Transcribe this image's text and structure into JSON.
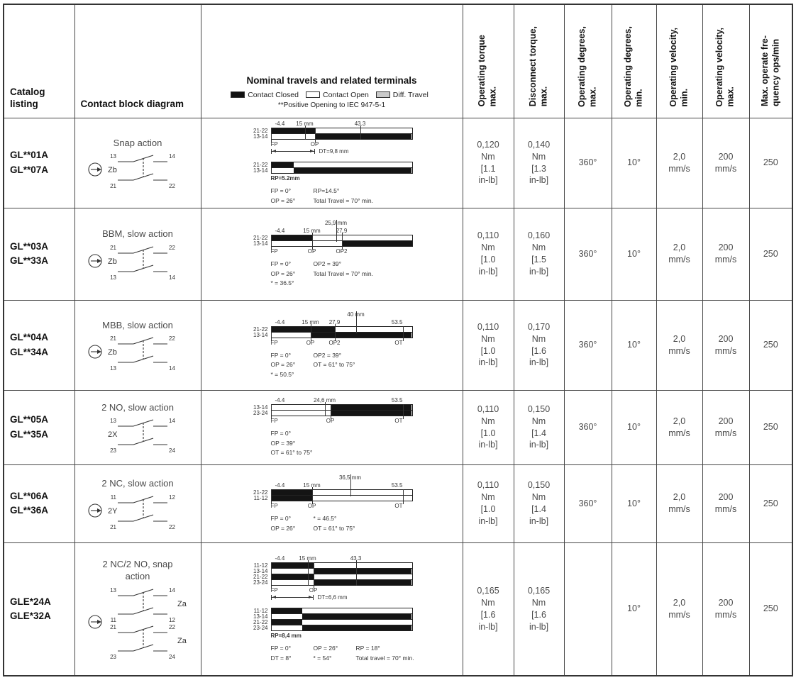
{
  "colors": {
    "contact_closed": "#111111",
    "contact_open": "#ffffff",
    "diff_travel": "#c9c9c9"
  },
  "header": {
    "col_catalog": "Catalog\nlisting",
    "col_contact": "Contact block diagram",
    "col_travels_title": "Nominal travels and related terminals",
    "legend": {
      "closed": "Contact Closed",
      "open": "Contact Open",
      "diff": "Diff. Travel",
      "note": "**Positive Opening to IEC 947-5-1"
    },
    "rotated": [
      "Operating torque\nmax.",
      "Disconnect torque,\nmax.",
      "Operating degrees,\nmax.",
      "Operating degrees,\nmin.",
      "Operating velocity,\nmin.",
      "Operating velocity,\nmax.",
      "Max. operate fre-\nquency ops/min"
    ]
  },
  "rows": [
    {
      "catalog": "GL**01A\nGL**07A",
      "contact": {
        "title": "Snap action",
        "plunger": true,
        "blocks": [
          {
            "label": "Zb",
            "contacts": [
              {
                "l": "13",
                "r": "14"
              },
              {
                "l": "21",
                "r": "22"
              }
            ]
          }
        ]
      },
      "travel": {
        "groups": [
          {
            "scale": [
              {
                "t": "-4.4",
                "p": 3
              },
              {
                "t": "15 mm",
                "p": 24,
                "tick": true
              },
              {
                "t": "43.3",
                "p": 63,
                "tick": true
              }
            ],
            "bars": [
              {
                "label": "21-22",
                "segs": [
                  [
                    "closed",
                    0,
                    31
                  ],
                  [
                    "open",
                    31,
                    100
                  ]
                ]
              },
              {
                "label": "13-14",
                "segs": [
                  [
                    "open",
                    0,
                    31
                  ],
                  [
                    "closed",
                    31,
                    100
                  ]
                ]
              }
            ],
            "markers": [
              {
                "t": "FP",
                "p": 0
              },
              {
                "t": "OP",
                "p": 31
              }
            ],
            "arrow": {
              "t": "DT=9,8 mm",
              "from": 0,
              "to": 31
            }
          },
          {
            "bars": [
              {
                "label": "21-22",
                "segs": [
                  [
                    "closed",
                    0,
                    16
                  ],
                  [
                    "open",
                    16,
                    100
                  ]
                ]
              },
              {
                "label": "13-14",
                "segs": [
                  [
                    "open",
                    0,
                    16
                  ],
                  [
                    "closed",
                    16,
                    100
                  ]
                ]
              }
            ],
            "under_note": "RP=5.2mm"
          }
        ],
        "notes": [
          [
            "FP = 0°",
            "RP=14.5°"
          ],
          [
            "OP = 26°",
            "Total Travel = 70° min."
          ]
        ]
      },
      "torque": "0,120\nNm\n[1.1\nin-lb]",
      "disconnect": "0,140\nNm\n[1.3\nin-lb]",
      "deg_max": "360°",
      "deg_min": "10°",
      "vel_min": "2,0\nmm/s",
      "vel_max": "200\nmm/s",
      "freq": "250"
    },
    {
      "catalog": "GL**03A\nGL**33A",
      "contact": {
        "title": "BBM, slow action",
        "plunger": true,
        "blocks": [
          {
            "label": "Zb",
            "contacts": [
              {
                "l": "21",
                "r": "22"
              },
              {
                "l": "13",
                "r": "14"
              }
            ]
          }
        ]
      },
      "travel": {
        "groups": [
          {
            "top_note": {
              "t": "25,9 mm",
              "p": 46
            },
            "scale": [
              {
                "t": "-4.4",
                "p": 3
              },
              {
                "t": "15 mm",
                "p": 29,
                "tick": true
              },
              {
                "t": "27,9",
                "p": 50,
                "tick": true
              }
            ],
            "bars": [
              {
                "label": "21-22",
                "segs": [
                  [
                    "closed",
                    0,
                    29
                  ],
                  [
                    "open",
                    29,
                    100
                  ]
                ]
              },
              {
                "label": "13-14",
                "segs": [
                  [
                    "open",
                    0,
                    50
                  ],
                  [
                    "closed",
                    50,
                    100
                  ]
                ]
              }
            ],
            "markers": [
              {
                "t": "FP",
                "p": 0
              },
              {
                "t": "OP",
                "p": 29
              },
              {
                "t": "OP2",
                "p": 50
              }
            ]
          }
        ],
        "notes": [
          [
            "FP = 0°",
            "OP2 = 39°"
          ],
          [
            "OP = 26°",
            "Total Travel = 70° min."
          ],
          [
            "* = 36.5°"
          ]
        ]
      },
      "torque": "0,110\nNm\n[1.0\nin-lb]",
      "disconnect": "0,160\nNm\n[1.5\nin-lb]",
      "deg_max": "360°",
      "deg_min": "10°",
      "vel_min": "2,0\nmm/s",
      "vel_max": "200\nmm/s",
      "freq": "250"
    },
    {
      "catalog": "GL**04A\nGL**34A",
      "contact": {
        "title": "MBB, slow action",
        "plunger": true,
        "blocks": [
          {
            "label": "Zb",
            "contacts": [
              {
                "l": "21",
                "r": "22"
              },
              {
                "l": "13",
                "r": "14"
              }
            ]
          }
        ]
      },
      "travel": {
        "groups": [
          {
            "top_note": {
              "t": "40 mm",
              "p": 60
            },
            "scale": [
              {
                "t": "-4.4",
                "p": 3
              },
              {
                "t": "15 mm",
                "p": 28,
                "tick": true
              },
              {
                "t": "27.9",
                "p": 45,
                "tick": true
              },
              {
                "t": "53.5",
                "p": 93
              }
            ],
            "bars": [
              {
                "label": "21-22",
                "segs": [
                  [
                    "closed",
                    0,
                    45
                  ],
                  [
                    "open",
                    45,
                    100
                  ]
                ]
              },
              {
                "label": "13-14",
                "segs": [
                  [
                    "open",
                    0,
                    28
                  ],
                  [
                    "closed",
                    28,
                    100
                  ]
                ]
              }
            ],
            "markers": [
              {
                "t": "FP",
                "p": 0
              },
              {
                "t": "OP",
                "p": 28
              },
              {
                "t": "OP2",
                "p": 45
              },
              {
                "t": "OT",
                "p": 93
              }
            ]
          }
        ],
        "notes": [
          [
            "FP = 0°",
            "OP2 = 39°"
          ],
          [
            "OP = 26°",
            "OT = 61° to 75°"
          ],
          [
            "* = 50.5°"
          ]
        ]
      },
      "torque": "0,110\nNm\n[1.0\nin-lb]",
      "disconnect": "0,170\nNm\n[1.6\nin-lb]",
      "deg_max": "360°",
      "deg_min": "10°",
      "vel_min": "2,0\nmm/s",
      "vel_max": "200\nmm/s",
      "freq": "250"
    },
    {
      "catalog": "GL**05A\nGL**35A",
      "contact": {
        "title": "2 NO, slow action",
        "plunger": false,
        "blocks": [
          {
            "label": "2X",
            "contacts": [
              {
                "l": "13",
                "r": "14"
              },
              {
                "l": "23",
                "r": "24"
              }
            ]
          }
        ]
      },
      "travel": {
        "groups": [
          {
            "scale": [
              {
                "t": "-4.4",
                "p": 3
              },
              {
                "t": "24,6 mm",
                "p": 38,
                "tick": true
              },
              {
                "t": "53.5",
                "p": 93
              }
            ],
            "bars": [
              {
                "label": "13-14",
                "segs": [
                  [
                    "open",
                    0,
                    42
                  ],
                  [
                    "closed",
                    42,
                    100
                  ]
                ]
              },
              {
                "label": "23-24",
                "segs": [
                  [
                    "open",
                    0,
                    42
                  ],
                  [
                    "closed",
                    42,
                    100
                  ]
                ]
              }
            ],
            "markers": [
              {
                "t": "FP",
                "p": 0
              },
              {
                "t": "OP",
                "p": 42
              },
              {
                "t": "OT",
                "p": 93
              }
            ]
          }
        ],
        "notes": [
          [
            "FP = 0°"
          ],
          [
            "OP = 39°"
          ],
          [
            "OT = 61° to 75°"
          ]
        ]
      },
      "torque": "0,110\nNm\n[1.0\nin-lb]",
      "disconnect": "0,150\nNm\n[1.4\nin-lb]",
      "deg_max": "360°",
      "deg_min": "10°",
      "vel_min": "2,0\nmm/s",
      "vel_max": "200\nmm/s",
      "freq": "250"
    },
    {
      "catalog": "GL**06A\nGL**36A",
      "contact": {
        "title": "2 NC, slow action",
        "plunger": true,
        "blocks": [
          {
            "label": "2Y",
            "contacts": [
              {
                "l": "11",
                "r": "12"
              },
              {
                "l": "21",
                "r": "22"
              }
            ]
          }
        ]
      },
      "travel": {
        "groups": [
          {
            "top_note": {
              "t": "36,5 mm",
              "p": 56
            },
            "scale": [
              {
                "t": "-4.4",
                "p": 3
              },
              {
                "t": "15 mm",
                "p": 29,
                "tick": true
              },
              {
                "t": "53.5",
                "p": 93
              }
            ],
            "bars": [
              {
                "label": "21-22",
                "segs": [
                  [
                    "closed",
                    0,
                    29
                  ],
                  [
                    "open",
                    29,
                    100
                  ]
                ]
              },
              {
                "label": "11-12",
                "segs": [
                  [
                    "closed",
                    0,
                    29
                  ],
                  [
                    "open",
                    29,
                    100
                  ]
                ]
              }
            ],
            "markers": [
              {
                "t": "FP",
                "p": 0
              },
              {
                "t": "OP",
                "p": 29
              },
              {
                "t": "OT",
                "p": 93
              }
            ]
          }
        ],
        "notes": [
          [
            "FP = 0°",
            "* = 46.5°"
          ],
          [
            "OP = 26°",
            "OT = 61° to 75°"
          ]
        ]
      },
      "torque": "0,110\nNm\n[1.0\nin-lb]",
      "disconnect": "0,150\nNm\n[1.4\nin-lb]",
      "deg_max": "360°",
      "deg_min": "10°",
      "vel_min": "2,0\nmm/s",
      "vel_max": "200\nmm/s",
      "freq": "250"
    },
    {
      "catalog": "GLE*24A\nGLE*32A",
      "contact": {
        "title": "2 NC/2 NO, snap\naction",
        "plunger": true,
        "blocks": [
          {
            "label": "Za",
            "contacts": [
              {
                "l": "13",
                "r": "14"
              },
              {
                "l": "11",
                "r": "12"
              }
            ]
          },
          {
            "label": "Za",
            "contacts": [
              {
                "l": "21",
                "r": "22"
              },
              {
                "l": "23",
                "r": "24"
              }
            ]
          }
        ]
      },
      "travel": {
        "groups": [
          {
            "scale": [
              {
                "t": "-4.4",
                "p": 3
              },
              {
                "t": "15 mm",
                "p": 26,
                "tick": true
              },
              {
                "t": "43.3",
                "p": 60,
                "tick": true
              }
            ],
            "bars": [
              {
                "label": "11-12",
                "segs": [
                  [
                    "closed",
                    0,
                    30
                  ],
                  [
                    "open",
                    30,
                    100
                  ]
                ]
              },
              {
                "label": "13-14",
                "segs": [
                  [
                    "open",
                    0,
                    30
                  ],
                  [
                    "closed",
                    30,
                    100
                  ]
                ]
              },
              {
                "label": "21-22",
                "segs": [
                  [
                    "closed",
                    0,
                    30
                  ],
                  [
                    "open",
                    30,
                    100
                  ]
                ]
              },
              {
                "label": "23-24",
                "segs": [
                  [
                    "open",
                    0,
                    30
                  ],
                  [
                    "closed",
                    30,
                    100
                  ]
                ]
              }
            ],
            "markers": [
              {
                "t": "FP",
                "p": 0
              },
              {
                "t": "OP",
                "p": 30
              }
            ],
            "arrow": {
              "t": "DT=6,6 mm",
              "from": 0,
              "to": 30
            }
          },
          {
            "bars": [
              {
                "label": "11-12",
                "segs": [
                  [
                    "closed",
                    0,
                    22
                  ],
                  [
                    "open",
                    22,
                    100
                  ]
                ]
              },
              {
                "label": "13-14",
                "segs": [
                  [
                    "open",
                    0,
                    22
                  ],
                  [
                    "closed",
                    22,
                    100
                  ]
                ]
              },
              {
                "label": "21-22",
                "segs": [
                  [
                    "closed",
                    0,
                    22
                  ],
                  [
                    "open",
                    22,
                    100
                  ]
                ]
              },
              {
                "label": "23-24",
                "segs": [
                  [
                    "open",
                    0,
                    22
                  ],
                  [
                    "closed",
                    22,
                    100
                  ]
                ]
              }
            ],
            "under_note": "RP=8,4 mm"
          }
        ],
        "notes": [
          [
            "FP = 0°",
            "OP = 26°",
            "RP = 18°"
          ],
          [
            "DT = 8°",
            "* = 54°",
            "Total travel = 70° min."
          ]
        ]
      },
      "torque": "0,165\nNm\n[1.6\nin-lb]",
      "disconnect": "0,165\nNm\n[1.6\nin-lb]",
      "deg_max": "",
      "deg_min": "10°",
      "vel_min": "2,0\nmm/s",
      "vel_max": "200\nmm/s",
      "freq": "250"
    }
  ]
}
